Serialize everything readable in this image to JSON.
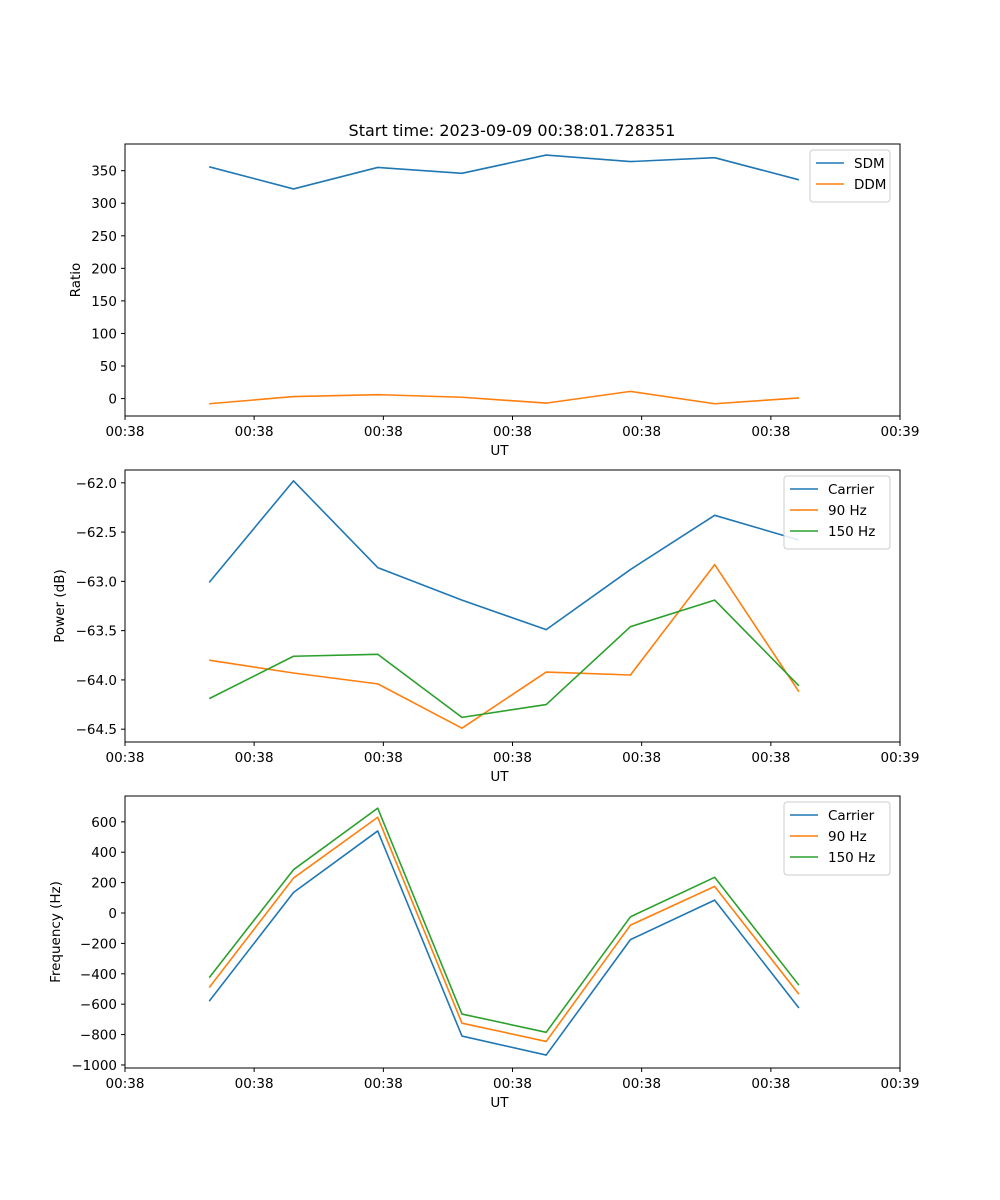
{
  "figure": {
    "title": "Start time: 2023-09-09 00:38:01.728351"
  },
  "colors": {
    "blue": "#1f77b4",
    "orange": "#ff7f0e",
    "green": "#2ca02c",
    "axis": "#000000"
  },
  "chart_data": [
    {
      "type": "line",
      "title": "Start time: 2023-09-09 00:38:01.728351",
      "xlabel": "UT",
      "ylabel": "Ratio",
      "x": [
        1,
        2,
        3,
        4,
        5,
        6,
        7,
        8
      ],
      "xlim": [
        0,
        9.2
      ],
      "xticks": [
        0,
        1.533,
        3.067,
        4.6,
        6.133,
        7.667,
        9.2
      ],
      "xtick_labels": [
        "00:38",
        "00:38",
        "00:38",
        "00:38",
        "00:38",
        "00:38",
        "00:39"
      ],
      "ylim": [
        -26.8,
        391
      ],
      "yticks": [
        0,
        50,
        100,
        150,
        200,
        250,
        300,
        350
      ],
      "ytick_labels": [
        "0",
        "50",
        "100",
        "150",
        "200",
        "250",
        "300",
        "350"
      ],
      "legend_position": "upper-right",
      "series": [
        {
          "name": "SDM",
          "color": "blue",
          "values": [
            356,
            322,
            355,
            346,
            374,
            364,
            370,
            336
          ]
        },
        {
          "name": "DDM",
          "color": "orange",
          "values": [
            -8,
            3,
            6,
            2,
            -7,
            11,
            -8,
            1
          ]
        }
      ]
    },
    {
      "type": "line",
      "title": "",
      "xlabel": "UT",
      "ylabel": "Power (dB)",
      "x": [
        1,
        2,
        3,
        4,
        5,
        6,
        7,
        8
      ],
      "xlim": [
        0,
        9.2
      ],
      "xticks": [
        0,
        1.533,
        3.067,
        4.6,
        6.133,
        7.667,
        9.2
      ],
      "xtick_labels": [
        "00:38",
        "00:38",
        "00:38",
        "00:38",
        "00:38",
        "00:38",
        "00:39"
      ],
      "ylim": [
        -64.63,
        -61.87
      ],
      "yticks": [
        -64.5,
        -64.0,
        -63.5,
        -63.0,
        -62.5,
        -62.0
      ],
      "ytick_labels": [
        "−64.5",
        "−64.0",
        "−63.5",
        "−63.0",
        "−62.5",
        "−62.0"
      ],
      "legend_position": "upper-right",
      "series": [
        {
          "name": "Carrier",
          "color": "blue",
          "values": [
            -63.01,
            -61.98,
            -62.86,
            -63.19,
            -63.49,
            -62.88,
            -62.33,
            -62.58
          ]
        },
        {
          "name": "90 Hz",
          "color": "orange",
          "values": [
            -63.8,
            -63.93,
            -64.04,
            -64.49,
            -63.92,
            -63.95,
            -62.83,
            -64.12
          ]
        },
        {
          "name": "150 Hz",
          "color": "green",
          "values": [
            -64.19,
            -63.76,
            -63.74,
            -64.38,
            -64.25,
            -63.46,
            -63.19,
            -64.06
          ]
        }
      ]
    },
    {
      "type": "line",
      "title": "",
      "xlabel": "UT",
      "ylabel": "Frequency (Hz)",
      "x": [
        1,
        2,
        3,
        4,
        5,
        6,
        7,
        8
      ],
      "xlim": [
        0,
        9.2
      ],
      "xticks": [
        0,
        1.533,
        3.067,
        4.6,
        6.133,
        7.667,
        9.2
      ],
      "xtick_labels": [
        "00:38",
        "00:38",
        "00:38",
        "00:38",
        "00:38",
        "00:38",
        "00:39"
      ],
      "ylim": [
        -1020,
        770
      ],
      "yticks": [
        -1000,
        -800,
        -600,
        -400,
        -200,
        0,
        200,
        400,
        600
      ],
      "ytick_labels": [
        "−1000",
        "−800",
        "−600",
        "−400",
        "−200",
        "0",
        "200",
        "400",
        "600"
      ],
      "legend_position": "upper-right",
      "series": [
        {
          "name": "Carrier",
          "color": "blue",
          "values": [
            -580,
            135,
            540,
            -810,
            -935,
            -175,
            85,
            -625
          ]
        },
        {
          "name": "90 Hz",
          "color": "orange",
          "values": [
            -490,
            230,
            630,
            -725,
            -845,
            -80,
            175,
            -535
          ]
        },
        {
          "name": "150 Hz",
          "color": "green",
          "values": [
            -425,
            285,
            690,
            -665,
            -785,
            -25,
            235,
            -475
          ]
        }
      ]
    }
  ]
}
